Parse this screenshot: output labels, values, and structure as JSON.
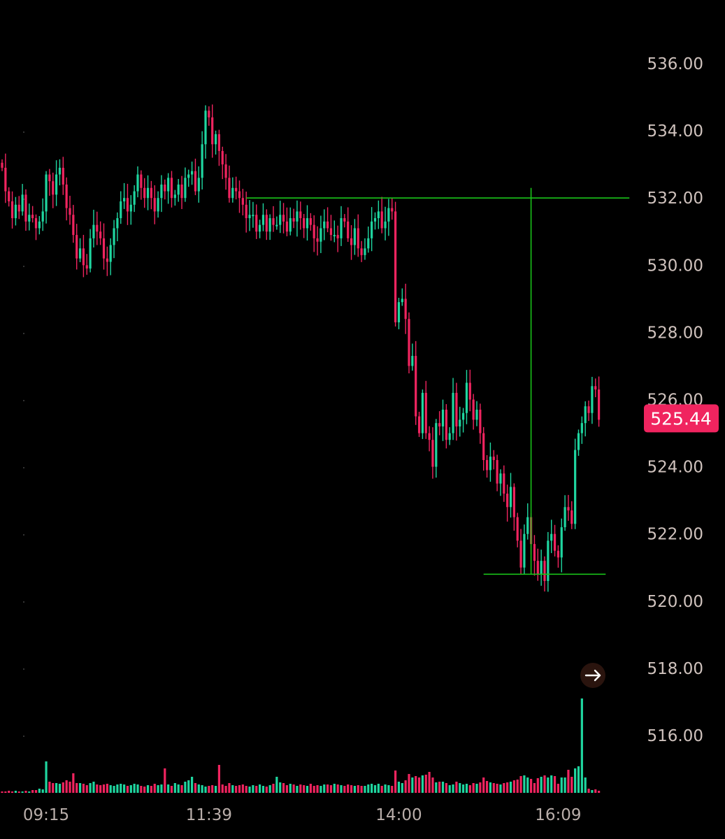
{
  "colors": {
    "background": "#000000",
    "up": "#1fd6a0",
    "down": "#f0245f",
    "drawing": "#19c219",
    "price_tag": "#f0245f",
    "axis_text": "#cfc2bd"
  },
  "price_tag": {
    "label": "525.44",
    "value": 525.44
  },
  "scroll_button": {
    "icon": "arrow-right-icon"
  },
  "chart_data": {
    "type": "candlestick",
    "ylim": [
      514.4,
      537.0
    ],
    "y_ticks": [
      {
        "value": 536,
        "label": "536.00"
      },
      {
        "value": 534,
        "label": "534.00"
      },
      {
        "value": 532,
        "label": "532.00"
      },
      {
        "value": 530,
        "label": "530.00"
      },
      {
        "value": 528,
        "label": "528.00"
      },
      {
        "value": 526,
        "label": "526.00"
      },
      {
        "value": 524,
        "label": "524.00"
      },
      {
        "value": 522,
        "label": "522.00"
      },
      {
        "value": 520,
        "label": "520.00"
      },
      {
        "value": 518,
        "label": "518.00"
      },
      {
        "value": 516,
        "label": "516.00"
      }
    ],
    "x_ticks": [
      {
        "index": 13,
        "label": "09:15"
      },
      {
        "index": 61,
        "label": "11:39"
      },
      {
        "index": 117,
        "label": "14:00"
      },
      {
        "index": 164,
        "label": "16:09"
      }
    ],
    "last_price": 525.44,
    "drawings": [
      {
        "type": "hline",
        "price": 532.0,
        "from": 72,
        "to": 185
      },
      {
        "type": "vline",
        "index": 156,
        "from_price": 532.3,
        "to_price": 520.8
      },
      {
        "type": "hline",
        "price": 520.8,
        "from": 142,
        "to": 178
      }
    ],
    "closes": [
      532.9,
      532.2,
      531.9,
      531.4,
      531.8,
      531.6,
      532.1,
      531.3,
      531.5,
      531.4,
      531.1,
      531.3,
      531.6,
      532.7,
      532.5,
      532.1,
      532.7,
      532.9,
      532.4,
      531.7,
      531.5,
      530.9,
      530.2,
      530.5,
      530.0,
      529.9,
      530.8,
      531.2,
      531.0,
      530.8,
      530.2,
      530.1,
      530.6,
      531.1,
      531.4,
      531.9,
      532.0,
      531.6,
      531.8,
      532.2,
      532.7,
      532.3,
      532.0,
      532.3,
      532.0,
      531.6,
      532.0,
      532.4,
      532.2,
      532.6,
      532.0,
      532.1,
      532.4,
      532.0,
      532.6,
      532.7,
      532.8,
      532.2,
      532.6,
      533.6,
      534.6,
      534.4,
      533.6,
      533.9,
      533.4,
      533.0,
      532.6,
      532.0,
      532.3,
      532.2,
      532.0,
      531.8,
      531.4,
      531.5,
      531.5,
      531.0,
      531.2,
      531.5,
      531.0,
      531.4,
      531.2,
      531.2,
      531.5,
      531.3,
      531.0,
      531.4,
      531.3,
      531.6,
      531.4,
      531.1,
      531.4,
      531.2,
      530.8,
      530.7,
      531.1,
      531.3,
      531.1,
      530.9,
      530.9,
      530.8,
      531.4,
      531.3,
      530.8,
      530.6,
      531.1,
      530.5,
      530.3,
      530.5,
      530.8,
      531.3,
      531.4,
      531.6,
      531.1,
      531.3,
      531.7,
      531.6,
      528.3,
      528.9,
      529.0,
      528.4,
      527.0,
      527.3,
      525.5,
      525.0,
      526.2,
      525.0,
      524.8,
      524.0,
      525.3,
      525.2,
      525.7,
      524.8,
      525.0,
      526.2,
      525.2,
      525.4,
      525.6,
      526.5,
      526.0,
      525.4,
      525.7,
      525.0,
      524.2,
      523.9,
      524.3,
      524.2,
      523.5,
      523.8,
      523.2,
      522.8,
      523.4,
      522.5,
      521.8,
      521.0,
      522.0,
      522.5,
      521.7,
      521.2,
      520.8,
      521.2,
      520.6,
      521.8,
      522.0,
      521.5,
      521.3,
      522.2,
      522.8,
      522.7,
      522.3,
      524.5,
      525.0,
      525.3,
      525.8,
      525.6,
      526.4,
      526.3,
      525.4
    ],
    "volumes": [
      0.2,
      0.2,
      0.3,
      0.2,
      0.3,
      0.2,
      0.2,
      0.3,
      0.2,
      0.4,
      0.4,
      0.6,
      0.5,
      4.5,
      1.6,
      1.4,
      1.4,
      1.3,
      1.5,
      1.8,
      1.6,
      2.8,
      1.4,
      1.4,
      1.3,
      1.1,
      1.4,
      1.6,
      1.2,
      1.1,
      1.2,
      1.3,
      1.1,
      1.0,
      1.2,
      1.3,
      1.2,
      1.0,
      1.1,
      1.3,
      1.2,
      1.0,
      0.9,
      1.1,
      1.0,
      1.3,
      1.1,
      1.2,
      3.5,
      1.2,
      1.0,
      1.4,
      1.2,
      1.1,
      1.6,
      1.8,
      2.3,
      1.4,
      1.2,
      1.1,
      0.9,
      1.0,
      1.1,
      1.0,
      4.0,
      1.2,
      1.0,
      1.4,
      1.1,
      1.0,
      1.1,
      1.2,
      1.0,
      0.9,
      1.1,
      1.0,
      1.2,
      1.0,
      0.9,
      1.1,
      1.3,
      2.3,
      1.5,
      1.4,
      1.1,
      1.3,
      1.2,
      1.0,
      1.2,
      1.1,
      1.0,
      1.3,
      1.0,
      1.1,
      1.0,
      1.2,
      1.2,
      1.1,
      1.3,
      1.2,
      1.1,
      1.0,
      1.2,
      1.1,
      1.0,
      1.1,
      1.0,
      1.0,
      1.2,
      1.3,
      1.1,
      1.3,
      1.0,
      1.2,
      1.1,
      1.0,
      3.2,
      1.6,
      1.4,
      1.8,
      2.7,
      2.2,
      2.4,
      2.2,
      2.5,
      2.6,
      3.0,
      2.2,
      1.5,
      1.6,
      1.6,
      1.4,
      1.1,
      1.2,
      1.6,
      1.4,
      1.2,
      1.3,
      1.1,
      1.4,
      1.3,
      1.5,
      2.2,
      1.7,
      1.5,
      1.4,
      1.3,
      1.2,
      1.4,
      1.5,
      1.6,
      1.8,
      1.9,
      2.4,
      2.5,
      2.2,
      2.0,
      1.4,
      2.1,
      2.3,
      2.5,
      2.2,
      2.5,
      2.4,
      1.3,
      2.2,
      2.2,
      3.3,
      2.3,
      3.5,
      3.8,
      13.5,
      2.2,
      0.6,
      0.4,
      0.5,
      0.3
    ]
  }
}
